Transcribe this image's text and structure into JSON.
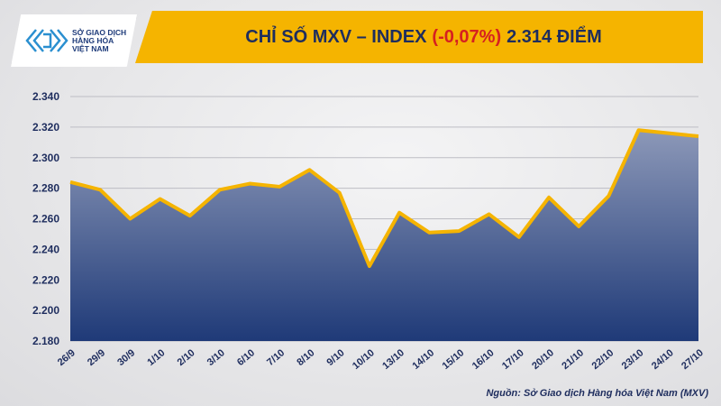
{
  "logo": {
    "line1": "SỞ GIAO DỊCH",
    "line2": "HÀNG HÓA",
    "line3": "VIỆT NAM"
  },
  "header": {
    "title_main": "CHỈ SỐ MXV – INDEX",
    "title_change": "(-0,07%)",
    "title_value": "2.314 ĐIỂM"
  },
  "source": "Nguồn: Sở Giao dịch Hàng hóa Việt Nam (MXV)",
  "colors": {
    "line": "#f5b400",
    "fill_top": "#8c98b8",
    "fill_bottom": "#1f3a78",
    "negative": "#d62020",
    "title": "#1e2d5e"
  },
  "chart_data": {
    "type": "area",
    "title": "CHỈ SỐ MXV – INDEX (-0,07%) 2.314 ĐIỂM",
    "xlabel": "",
    "ylabel": "",
    "ylim": [
      2180,
      2340
    ],
    "yticks": [
      2180,
      2200,
      2220,
      2240,
      2260,
      2280,
      2300,
      2320,
      2340
    ],
    "ytick_labels": [
      "2.180",
      "2.200",
      "2.220",
      "2.240",
      "2.260",
      "2.280",
      "2.300",
      "2.320",
      "2.340"
    ],
    "grid": true,
    "categories": [
      "26/9",
      "29/9",
      "30/9",
      "1/10",
      "2/10",
      "3/10",
      "6/10",
      "7/10",
      "8/10",
      "9/10",
      "10/10",
      "13/10",
      "14/10",
      "15/10",
      "16/10",
      "17/10",
      "20/10",
      "21/10",
      "22/10",
      "23/10",
      "24/10",
      "27/10"
    ],
    "values": [
      2284,
      2279,
      2260,
      2273,
      2262,
      2279,
      2283,
      2281,
      2292,
      2277,
      2229,
      2264,
      2251,
      2252,
      2263,
      2248,
      2274,
      2255,
      2275,
      2318,
      2316,
      2314
    ]
  }
}
